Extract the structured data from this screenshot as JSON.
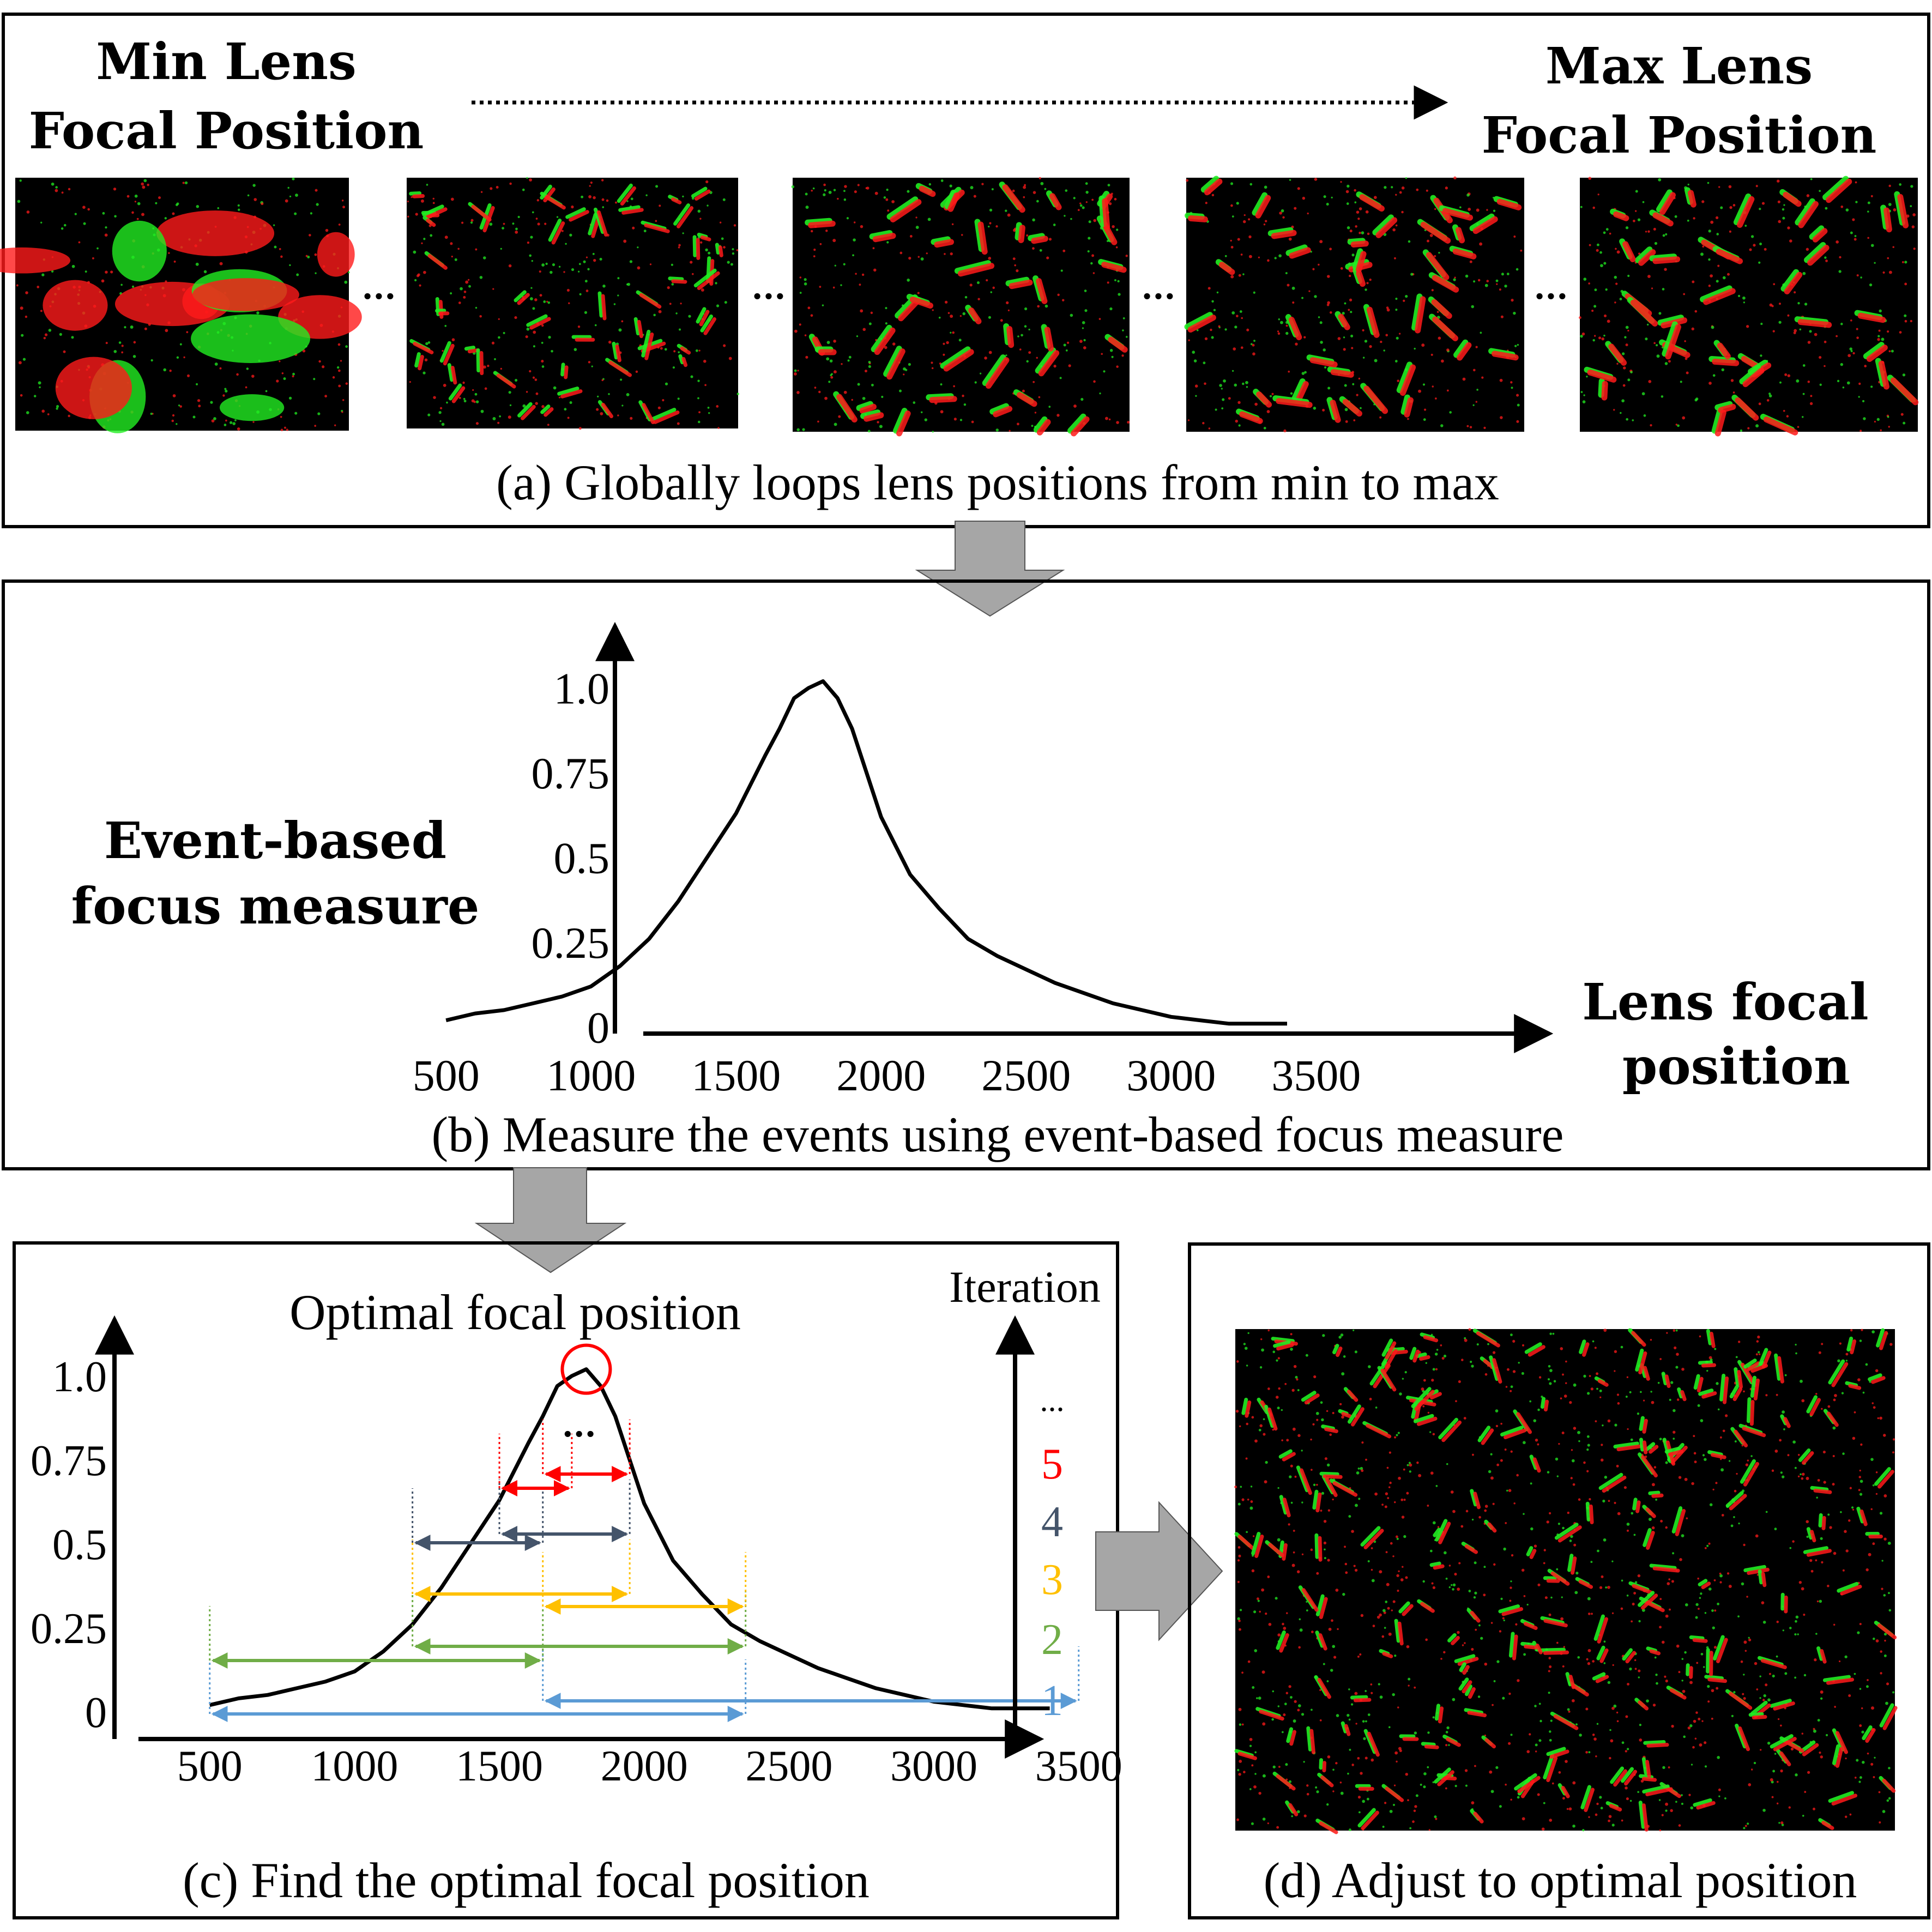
{
  "panel_a": {
    "title_min": [
      "Min Lens",
      "Focal Position"
    ],
    "title_max": [
      "Max Lens",
      "Focal Position"
    ],
    "ellipsis": "...",
    "caption": "(a) Globally loops lens positions from min to max"
  },
  "panel_b": {
    "ylabel": [
      "Event-based",
      "focus measure"
    ],
    "xlabel": [
      "Lens focal",
      "position"
    ],
    "caption": "(b) Measure the events using event-based focus measure"
  },
  "panel_c": {
    "title": "Optimal focal position",
    "iteration_label": "Iteration",
    "iter_ellipsis": "...",
    "curve_ellipsis": "...",
    "iterations": [
      {
        "label": "1",
        "color": "#5b9bd5"
      },
      {
        "label": "2",
        "color": "#70ad47"
      },
      {
        "label": "3",
        "color": "#ffc000"
      },
      {
        "label": "4",
        "color": "#44546a"
      },
      {
        "label": "5",
        "color": "#ff0000"
      }
    ],
    "caption": "(c) Find the optimal focal position"
  },
  "panel_d": {
    "caption": "(d) Adjust to optimal position"
  },
  "colors": {
    "event_red": "#ff1a1a",
    "event_green": "#22ee22",
    "arrow_gray": "#a6a6a6",
    "optimum_marker": "#ff0000"
  },
  "chart_data": {
    "type": "line",
    "x": [
      500,
      600,
      700,
      800,
      900,
      1000,
      1100,
      1200,
      1300,
      1400,
      1500,
      1600,
      1650,
      1700,
      1750,
      1800,
      1850,
      1900,
      1950,
      2000,
      2100,
      2200,
      2300,
      2400,
      2500,
      2600,
      2700,
      2800,
      2900,
      3000,
      3100,
      3200,
      3300,
      3400
    ],
    "y": [
      0.02,
      0.04,
      0.05,
      0.07,
      0.09,
      0.12,
      0.18,
      0.26,
      0.37,
      0.5,
      0.63,
      0.8,
      0.88,
      0.97,
      1.0,
      1.02,
      0.97,
      0.88,
      0.75,
      0.62,
      0.45,
      0.35,
      0.26,
      0.21,
      0.17,
      0.13,
      0.1,
      0.07,
      0.05,
      0.03,
      0.02,
      0.01,
      0.01,
      0.01
    ],
    "xticks": [
      "500",
      "1000",
      "1500",
      "2000",
      "2500",
      "3000",
      "3500"
    ],
    "yticks": [
      "0",
      "0.25",
      "0.5",
      "0.75",
      "1.0"
    ],
    "xlim": [
      450,
      3500
    ],
    "ylim": [
      0,
      1.1
    ],
    "search_intervals": [
      {
        "iteration": 1,
        "ranges": [
          [
            500,
            2350
          ],
          [
            1650,
            3500
          ]
        ]
      },
      {
        "iteration": 2,
        "ranges": [
          [
            500,
            1650
          ],
          [
            1200,
            2350
          ]
        ]
      },
      {
        "iteration": 3,
        "ranges": [
          [
            1200,
            1950
          ],
          [
            1650,
            2350
          ]
        ]
      },
      {
        "iteration": 4,
        "ranges": [
          [
            1200,
            1650
          ],
          [
            1500,
            1950
          ]
        ]
      },
      {
        "iteration": 5,
        "ranges": [
          [
            1500,
            1750
          ],
          [
            1650,
            1950
          ]
        ]
      }
    ],
    "optimum": {
      "x": 1800,
      "y": 1.02
    }
  }
}
